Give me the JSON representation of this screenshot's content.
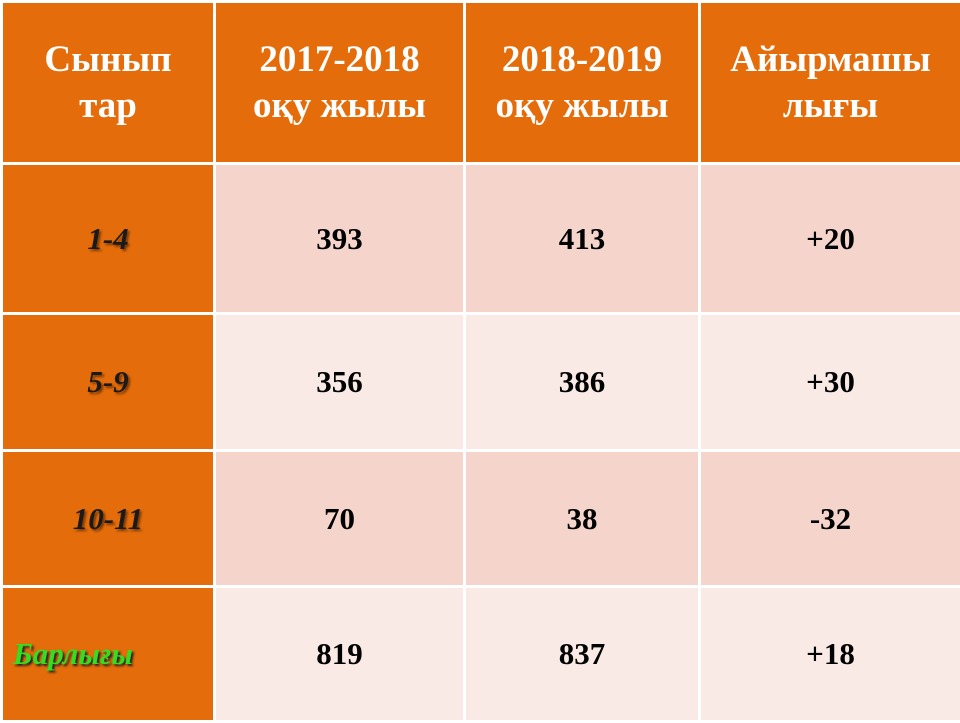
{
  "table": {
    "header": [
      [
        "Сынып",
        "тар"
      ],
      [
        "2017-2018",
        "оқу жылы"
      ],
      [
        "2018-2019",
        "оқу жылы"
      ],
      [
        "Айырмашы",
        "лығы"
      ]
    ],
    "rows": [
      [
        "1-4",
        "393",
        "413",
        "+20"
      ],
      [
        "5-9",
        "356",
        "386",
        "+30"
      ],
      [
        "10-11",
        "70",
        "38",
        "-32"
      ],
      [
        "Барлығы",
        "819",
        "837",
        "+18"
      ]
    ]
  }
}
